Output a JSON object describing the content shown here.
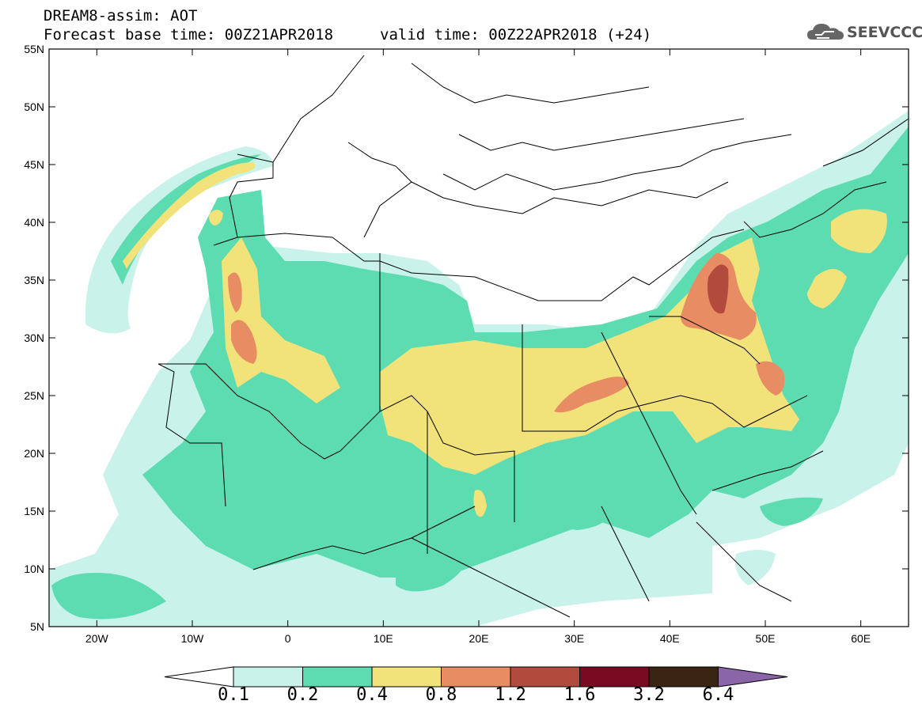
{
  "title": {
    "line1": "DREAM8-assim: AOT",
    "line2": "Forecast base time: 00Z21APR2018",
    "valid": "valid time: 00Z22APR2018 (+24)"
  },
  "logo": {
    "text": "SEEVCCC",
    "icon": "cloud-icon"
  },
  "map": {
    "region": "North Africa / Mediterranean / Middle East",
    "lon_range": [
      -25,
      65
    ],
    "lat_range": [
      5,
      55
    ],
    "x_ticks": [
      "20W",
      "10W",
      "0",
      "10E",
      "20E",
      "30E",
      "40E",
      "50E",
      "60E"
    ],
    "y_ticks": [
      "55N",
      "50N",
      "45N",
      "40N",
      "35N",
      "30N",
      "25N",
      "20N",
      "15N",
      "10N",
      "5N"
    ]
  },
  "colorbar": {
    "levels": [
      "0.1",
      "0.2",
      "0.4",
      "0.8",
      "1.2",
      "1.6",
      "3.2",
      "6.4"
    ],
    "colors": [
      "#c8f2ea",
      "#5cdcb0",
      "#f2e27a",
      "#e88c64",
      "#b34a3e",
      "#7a0a22",
      "#3a2414",
      "#8a66a8"
    ],
    "under_color": "#ffffff"
  }
}
